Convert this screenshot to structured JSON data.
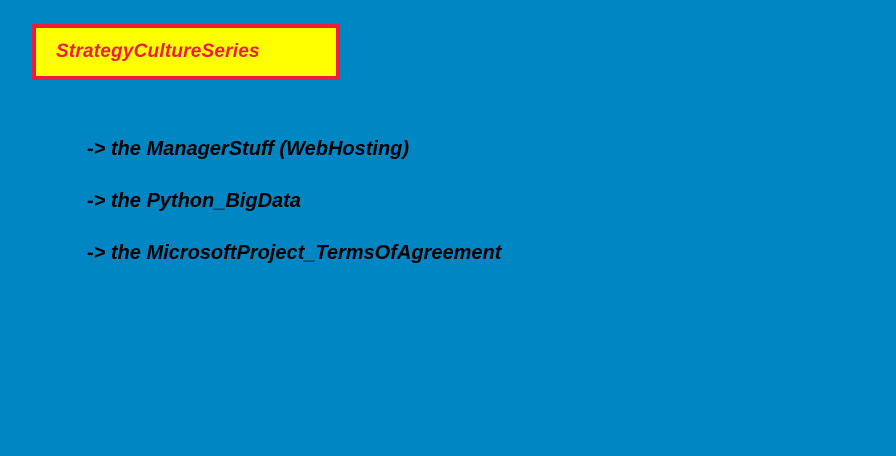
{
  "header": {
    "title": "StrategyCultureSeries"
  },
  "links": [
    {
      "label": "-> the ManagerStuff (WebHosting)"
    },
    {
      "label": "-> the Python_BigData"
    },
    {
      "label": "-> the MicrosoftProject_TermsOfAgreement"
    }
  ],
  "colors": {
    "background": "#0086c3",
    "title_box_fill": "#ffff00",
    "title_box_border": "#ee1c3c",
    "title_text": "#ee1c3c",
    "link_text": "#000000"
  }
}
